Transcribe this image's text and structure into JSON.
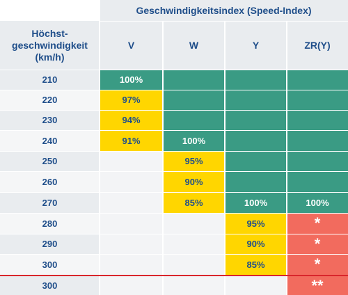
{
  "header": {
    "group_title": "Geschwindigkeitsindex (Speed-Index)",
    "row_label": "Höchst-\ngeschwindigkeit\n(km/h)",
    "columns": [
      "V",
      "W",
      "Y",
      "ZR(Y)"
    ]
  },
  "rows": [
    {
      "speed": "210",
      "V": "100%",
      "W": "",
      "Y": "",
      "ZR": ""
    },
    {
      "speed": "220",
      "V": "97%",
      "W": "",
      "Y": "",
      "ZR": ""
    },
    {
      "speed": "230",
      "V": "94%",
      "W": "",
      "Y": "",
      "ZR": ""
    },
    {
      "speed": "240",
      "V": "91%",
      "W": "100%",
      "Y": "",
      "ZR": ""
    },
    {
      "speed": "250",
      "V": "",
      "W": "95%",
      "Y": "",
      "ZR": ""
    },
    {
      "speed": "260",
      "V": "",
      "W": "90%",
      "Y": "",
      "ZR": ""
    },
    {
      "speed": "270",
      "V": "",
      "W": "85%",
      "Y": "100%",
      "ZR": "100%"
    },
    {
      "speed": "280",
      "V": "",
      "W": "",
      "Y": "95%",
      "ZR": "*"
    },
    {
      "speed": "290",
      "V": "",
      "W": "",
      "Y": "90%",
      "ZR": "*"
    },
    {
      "speed": "300",
      "V": "",
      "W": "",
      "Y": "85%",
      "ZR": "*"
    },
    {
      "speed": "300",
      "V": "",
      "W": "",
      "Y": "",
      "ZR": "**"
    }
  ],
  "colors": {
    "green": "#3a9b84",
    "yellow": "#ffd600",
    "red": "#f26b5e",
    "text_blue": "#1f4e8a",
    "divider_red": "#d9262c"
  }
}
